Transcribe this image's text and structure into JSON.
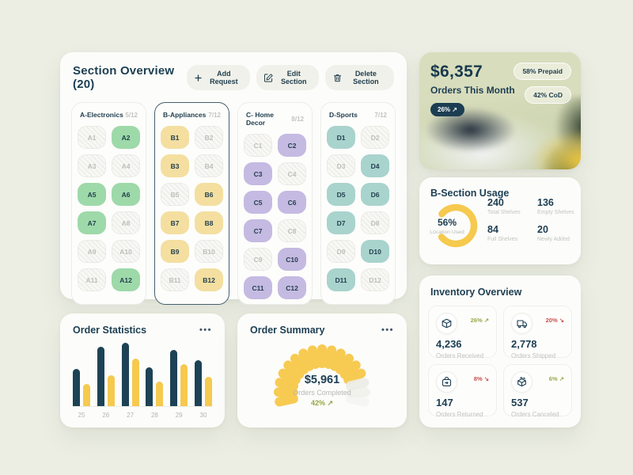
{
  "colors": {
    "navy": "#1d4255",
    "yellow": "#f6c94f",
    "green": "#9ed9a9",
    "pale_yellow": "#f4dfa0",
    "purple": "#c5bae2",
    "teal": "#a9d3cd",
    "trend_up": "#96aa49",
    "trend_down": "#c8504a",
    "card_sage": "#d8ddbd"
  },
  "section_overview": {
    "title": "Section Overview (20)",
    "actions": [
      {
        "label": "Add Request"
      },
      {
        "label": "Edit Section"
      },
      {
        "label": "Delete Section"
      }
    ],
    "sections": [
      {
        "key": "A",
        "name": "A-Electronics",
        "count": "5/12",
        "color": "#9ed9a9",
        "selected": false,
        "cells": [
          {
            "id": "A1",
            "filled": false
          },
          {
            "id": "A2",
            "filled": true
          },
          {
            "id": "A3",
            "filled": false
          },
          {
            "id": "A4",
            "filled": false
          },
          {
            "id": "A5",
            "filled": true
          },
          {
            "id": "A6",
            "filled": true
          },
          {
            "id": "A7",
            "filled": true
          },
          {
            "id": "A8",
            "filled": false
          },
          {
            "id": "A9",
            "filled": false
          },
          {
            "id": "A10",
            "filled": false
          },
          {
            "id": "A11",
            "filled": false
          },
          {
            "id": "A12",
            "filled": true
          }
        ]
      },
      {
        "key": "B",
        "name": "B-Appliances",
        "count": "7/12",
        "color": "#f4dfa0",
        "selected": true,
        "cells": [
          {
            "id": "B1",
            "filled": true
          },
          {
            "id": "B2",
            "filled": false
          },
          {
            "id": "B3",
            "filled": true
          },
          {
            "id": "B4",
            "filled": false
          },
          {
            "id": "B5",
            "filled": false
          },
          {
            "id": "B6",
            "filled": true
          },
          {
            "id": "B7",
            "filled": true
          },
          {
            "id": "B8",
            "filled": true
          },
          {
            "id": "B9",
            "filled": true
          },
          {
            "id": "B10",
            "filled": false
          },
          {
            "id": "B11",
            "filled": false
          },
          {
            "id": "B12",
            "filled": true
          }
        ]
      },
      {
        "key": "C",
        "name": "C- Home Decor",
        "count": "8/12",
        "color": "#c5bae2",
        "selected": false,
        "cells": [
          {
            "id": "C1",
            "filled": false
          },
          {
            "id": "C2",
            "filled": true
          },
          {
            "id": "C3",
            "filled": true
          },
          {
            "id": "C4",
            "filled": false
          },
          {
            "id": "C5",
            "filled": true
          },
          {
            "id": "C6",
            "filled": true
          },
          {
            "id": "C7",
            "filled": true
          },
          {
            "id": "C8",
            "filled": false
          },
          {
            "id": "C9",
            "filled": false
          },
          {
            "id": "C10",
            "filled": true
          },
          {
            "id": "C11",
            "filled": true
          },
          {
            "id": "C12",
            "filled": true
          }
        ]
      },
      {
        "key": "D",
        "name": "D-Sports",
        "count": "7/12",
        "color": "#a9d3cd",
        "selected": false,
        "cells": [
          {
            "id": "D1",
            "filled": true
          },
          {
            "id": "D2",
            "filled": false
          },
          {
            "id": "D3",
            "filled": false
          },
          {
            "id": "D4",
            "filled": true
          },
          {
            "id": "D5",
            "filled": true
          },
          {
            "id": "D6",
            "filled": true
          },
          {
            "id": "D7",
            "filled": true
          },
          {
            "id": "D8",
            "filled": false
          },
          {
            "id": "D9",
            "filled": false
          },
          {
            "id": "D10",
            "filled": true
          },
          {
            "id": "D11",
            "filled": true
          },
          {
            "id": "D12",
            "filled": false
          }
        ]
      }
    ]
  },
  "orders_month": {
    "amount": "$6,357",
    "label": "Orders This Month",
    "trend": "26% ↗",
    "badges": [
      "58% Prepaid",
      "42% CoD"
    ]
  },
  "section_usage": {
    "title": "B-Section Usage",
    "percent": "56%",
    "percent_label": "Location Used",
    "stats": [
      {
        "value": "240",
        "label": "Total Shelves"
      },
      {
        "value": "136",
        "label": "Empty Shelves"
      },
      {
        "value": "84",
        "label": "Full Shelves"
      },
      {
        "value": "20",
        "label": "Newly Added"
      }
    ],
    "chart_data": {
      "type": "donut",
      "percent": 56,
      "label": "Location Used",
      "color": "#f6c94f"
    }
  },
  "order_statistics": {
    "title": "Order Statistics",
    "menu": "•••",
    "chart_data": {
      "type": "bar",
      "categories": [
        "25",
        "26",
        "27",
        "28",
        "29",
        "30"
      ],
      "series": [
        {
          "name": "primary",
          "color": "#1d4255",
          "values": [
            47,
            75,
            80,
            49,
            71,
            58
          ]
        },
        {
          "name": "secondary",
          "color": "#f6c94f",
          "values": [
            28,
            39,
            60,
            31,
            53,
            37
          ]
        }
      ],
      "ylim": [
        0,
        82
      ],
      "grid": false,
      "legend": false
    }
  },
  "order_summary": {
    "title": "Order Summary",
    "menu": "•••",
    "amount": "$5,961",
    "label": "Orders Completed",
    "trend": "42% ↗",
    "chart_data": {
      "type": "gauge",
      "segments_total": 17,
      "segments_filled": 14,
      "value_label": "$5,961",
      "caption": "Orders Completed",
      "percent": "42%",
      "filled_color": "#f7ca52",
      "empty_color": "#ecece7"
    }
  },
  "inventory": {
    "title": "Inventory Overview",
    "cards": [
      {
        "icon": "package",
        "value": "4,236",
        "label": "Orders Received",
        "trend": "26% ↗",
        "direction": "up"
      },
      {
        "icon": "truck",
        "value": "2,778",
        "label": "Orders Shipped",
        "trend": "20% ↘",
        "direction": "down"
      },
      {
        "icon": "return",
        "value": "147",
        "label": "Orders Returned",
        "trend": "8% ↘",
        "direction": "down"
      },
      {
        "icon": "cancel",
        "value": "537",
        "label": "Orders Canceled",
        "trend": "6% ↗",
        "direction": "up"
      }
    ]
  }
}
